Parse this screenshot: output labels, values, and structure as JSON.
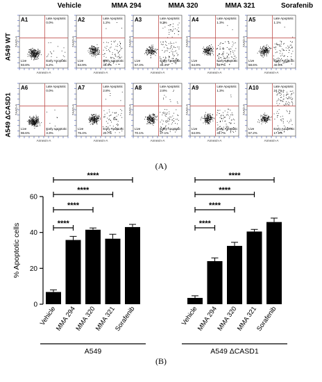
{
  "panel_a": {
    "caption": "(A)",
    "column_headers": [
      "Vehicle",
      "MMA 294",
      "MMA 320",
      "MMA 321",
      "Sorafenib"
    ],
    "row_headers": [
      "A549 WT",
      "A549 ΔCASD1"
    ],
    "axis_y_label": "7AAD-A",
    "axis_x_label": "Annexin-A",
    "quadrant_labels": {
      "live": "Live",
      "late_apoptotic": "Late Apoptotic",
      "early_apoptotic": "Early Apoptotic"
    },
    "plots": [
      {
        "id": "A1",
        "live": "93.8%",
        "late": "0.0%",
        "early": "6.2%"
      },
      {
        "id": "A2",
        "live": "64.9%",
        "late": "1.2%",
        "early": "33.9%"
      },
      {
        "id": "A3",
        "live": "57.4%",
        "late": "9.3%",
        "early": "33.3%"
      },
      {
        "id": "A4",
        "live": "64.9%",
        "late": "1.3%",
        "early": "33.7%"
      },
      {
        "id": "A5",
        "live": "58.6%",
        "late": "1.1%",
        "early": "40.3%"
      },
      {
        "id": "A6",
        "live": "96.6%",
        "late": "0.0%",
        "early": "3.3%"
      },
      {
        "id": "A7",
        "live": "76.4%",
        "late": "2.8%",
        "early": "20.7%"
      },
      {
        "id": "A8",
        "live": "70.1%",
        "late": "2.8%",
        "early": "27.1%"
      },
      {
        "id": "A9",
        "live": "64.9%",
        "late": "1.3%",
        "early": "33.7%"
      },
      {
        "id": "A10",
        "live": "57.2%",
        "late": "24.7%",
        "early": "17.9%"
      }
    ],
    "colors": {
      "dots": "#111111",
      "quadrant": "#c0504d",
      "axis": "#3a4fb0"
    }
  },
  "chart_data": {
    "type": "bar",
    "caption": "(B)",
    "ylabel": "% Apoptotic cells",
    "ylim": [
      0,
      60
    ],
    "yticks": [
      0,
      20,
      40,
      60
    ],
    "groups": [
      {
        "name": "A549",
        "categories": [
          "Vehicle",
          "MMA 294",
          "MMA 320",
          "MMA 321",
          "Sorafenib"
        ],
        "values": [
          6.8,
          35.8,
          41.5,
          36.5,
          43.0
        ],
        "errors": [
          1.2,
          2.0,
          1.0,
          2.5,
          1.5
        ],
        "significance": [
          {
            "from": 0,
            "to": 1,
            "label": "****"
          },
          {
            "from": 0,
            "to": 2,
            "label": "****"
          },
          {
            "from": 0,
            "to": 3,
            "label": "****"
          },
          {
            "from": 0,
            "to": 4,
            "label": "****"
          }
        ]
      },
      {
        "name": "A549 ΔCASD1",
        "categories": [
          "Vehicle",
          "MMA 294",
          "MMA 320",
          "MMA 321",
          "Sorafenib"
        ],
        "values": [
          3.5,
          24.0,
          32.5,
          40.5,
          45.8
        ],
        "errors": [
          1.2,
          1.8,
          2.0,
          1.2,
          2.2
        ],
        "significance": [
          {
            "from": 0,
            "to": 1,
            "label": "****"
          },
          {
            "from": 0,
            "to": 2,
            "label": "****"
          },
          {
            "from": 0,
            "to": 3,
            "label": "****"
          },
          {
            "from": 0,
            "to": 4,
            "label": "****"
          }
        ]
      }
    ],
    "bar_color": "#000000"
  }
}
